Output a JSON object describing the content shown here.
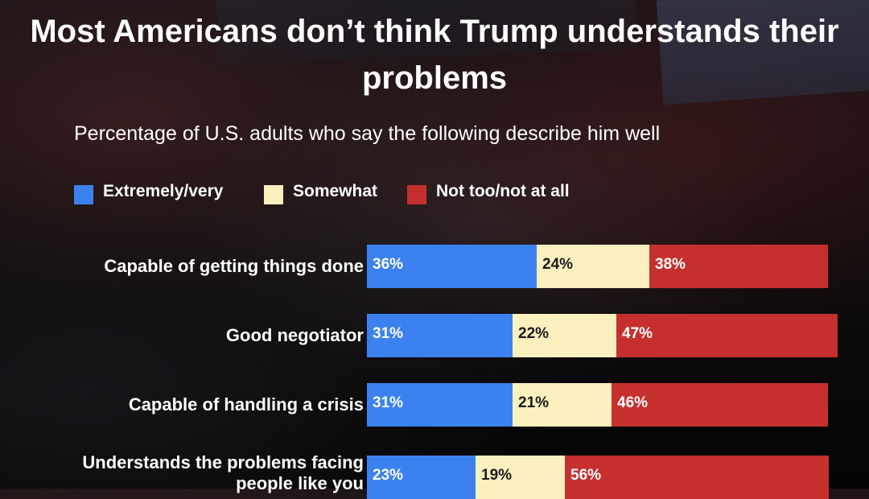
{
  "colors": {
    "extremely_very": "#3b82f0",
    "somewhat": "#fdf0bf",
    "not_too": "#c5302e",
    "label_on_light": "#1a1a1a",
    "label_on_dark": "#ffffff"
  },
  "chart_data": {
    "type": "bar",
    "orientation": "horizontal",
    "stacked": true,
    "title": "Most Americans don’t think Trump understands their problems",
    "subtitle": "Percentage of U.S. adults who say the following describe him well",
    "legend_placement": "top",
    "categories": [
      "Capable of getting things done",
      "Good negotiator",
      "Capable of handling a crisis",
      "Understands the problems facing people like you"
    ],
    "series": [
      {
        "name": "Extremely/very",
        "values": [
          36,
          31,
          31,
          23
        ]
      },
      {
        "name": "Somewhat",
        "values": [
          24,
          22,
          21,
          19
        ]
      },
      {
        "name": "Not too/not at all",
        "values": [
          38,
          47,
          46,
          56
        ]
      }
    ],
    "data_labels": [
      [
        "36%",
        "24%",
        "38%"
      ],
      [
        "31%",
        "22%",
        "47%"
      ],
      [
        "31%",
        "21%",
        "46%"
      ],
      [
        "23%",
        "19%",
        "56%"
      ]
    ]
  }
}
